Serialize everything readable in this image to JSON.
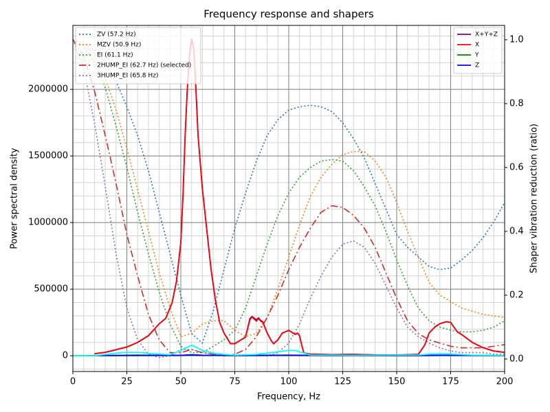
{
  "chart_data": {
    "type": "line",
    "title": "Frequency response and shapers",
    "xlabel": "Frequency, Hz",
    "ylabel": "Power spectral density",
    "y2label": "Shaper vibration reduction (ratio)",
    "xlim": [
      0,
      200
    ],
    "ylim": [
      -118000,
      2480000
    ],
    "y2lim": [
      -0.039,
      1.045
    ],
    "xticks": [
      0,
      25,
      50,
      75,
      100,
      125,
      150,
      175,
      200
    ],
    "yticks": [
      0,
      500000,
      1000000,
      1500000,
      2000000
    ],
    "y2ticks": [
      {
        "value": 0,
        "label": "0.0"
      },
      0.2,
      0.4,
      0.6,
      0.8,
      {
        "value": 1,
        "label": "1.0"
      }
    ],
    "xminorticks": [
      0,
      5,
      10,
      15,
      20,
      25,
      30,
      35,
      40,
      45,
      50,
      55,
      60,
      65,
      70,
      75,
      80,
      85,
      90,
      95,
      100,
      105,
      110,
      115,
      120,
      125,
      130,
      135,
      140,
      145,
      150,
      155,
      160,
      165,
      170,
      175,
      180,
      185,
      190,
      195,
      200
    ],
    "yminorticks": [
      -100000,
      0,
      100000,
      200000,
      300000,
      400000,
      500000,
      600000,
      700000,
      800000,
      900000,
      1000000,
      1100000,
      1200000,
      1300000,
      1400000,
      1500000,
      1600000,
      1700000,
      1800000,
      1900000,
      2000000,
      2100000,
      2200000,
      2300000,
      2400000
    ],
    "grid": true,
    "legend": "upper right",
    "legend2": "upper left",
    "x": [
      0,
      5,
      10,
      15,
      20,
      25,
      30,
      35,
      40,
      45,
      50,
      55,
      60,
      65,
      70,
      75,
      80,
      85,
      90,
      95,
      100,
      105,
      110,
      115,
      120,
      125,
      130,
      135,
      140,
      145,
      150,
      155,
      160,
      165,
      170,
      175,
      180,
      185,
      190,
      195,
      200
    ],
    "series": [
      {
        "name": "X+Y+Z",
        "color": "#800080",
        "style": "solid",
        "x": [
          10,
          15,
          20,
          25,
          30,
          35,
          40,
          43,
          46,
          48,
          50,
          51,
          52,
          53,
          54,
          55,
          56,
          57,
          58,
          60,
          62,
          64,
          66,
          68,
          70,
          73,
          75,
          78,
          80,
          82,
          83,
          85,
          86,
          87,
          88,
          90,
          92,
          93,
          95,
          97,
          100,
          102,
          103,
          104,
          105,
          106,
          107,
          110,
          120,
          130,
          140,
          150,
          155,
          160,
          163,
          165,
          168,
          170,
          173,
          175,
          178,
          180,
          185,
          190,
          195,
          200
        ],
        "values": [
          16000,
          26000,
          46000,
          66000,
          101000,
          151000,
          241000,
          281000,
          401000,
          561000,
          851000,
          1201000,
          1651000,
          2001000,
          2251000,
          2381000,
          2301000,
          2001000,
          1651000,
          1251000,
          951000,
          651000,
          421000,
          251000,
          171000,
          91000,
          91000,
          121000,
          141000,
          280000,
          295000,
          270000,
          285000,
          265000,
          255000,
          171000,
          111000,
          91000,
          121000,
          171000,
          191000,
          171000,
          161000,
          171000,
          151000,
          81000,
          21000,
          13000,
          9000,
          11000,
          7000,
          6000,
          8000,
          11000,
          81000,
          171000,
          221000,
          241000,
          256000,
          251000,
          181000,
          161000,
          101000,
          61000,
          36000,
          26000
        ]
      },
      {
        "name": "X",
        "color": "#ff0000",
        "style": "solid",
        "x": [
          10,
          15,
          20,
          25,
          30,
          35,
          40,
          43,
          46,
          48,
          50,
          51,
          52,
          53,
          54,
          55,
          56,
          57,
          58,
          60,
          62,
          64,
          66,
          68,
          70,
          73,
          75,
          78,
          80,
          82,
          83,
          85,
          86,
          87,
          88,
          90,
          92,
          93,
          95,
          97,
          100,
          102,
          103,
          104,
          105,
          106,
          107,
          110,
          120,
          130,
          140,
          150,
          155,
          160,
          163,
          165,
          168,
          170,
          173,
          175,
          178,
          180,
          185,
          190,
          195,
          200
        ],
        "values": [
          15000,
          25000,
          45000,
          65000,
          100000,
          150000,
          240000,
          280000,
          400000,
          560000,
          850000,
          1200000,
          1650000,
          2000000,
          2250000,
          2380000,
          2300000,
          2000000,
          1650000,
          1250000,
          950000,
          650000,
          420000,
          250000,
          170000,
          90000,
          90000,
          120000,
          140000,
          270000,
          290000,
          260000,
          280000,
          260000,
          250000,
          170000,
          110000,
          90000,
          120000,
          170000,
          190000,
          170000,
          160000,
          170000,
          150000,
          80000,
          20000,
          12000,
          8000,
          10000,
          6000,
          5000,
          7000,
          10000,
          80000,
          170000,
          220000,
          240000,
          255000,
          250000,
          180000,
          160000,
          100000,
          60000,
          35000,
          25000
        ]
      },
      {
        "name": "Y",
        "color": "#008000",
        "style": "solid",
        "x": [
          10,
          30,
          50,
          55,
          60,
          80,
          100,
          120,
          160,
          170,
          200
        ],
        "values": [
          2000,
          5000,
          3000,
          8000,
          4000,
          3000,
          5000,
          2000,
          2000,
          4000,
          1000
        ]
      },
      {
        "name": "Z",
        "color": "#0000ff",
        "style": "solid",
        "x": [
          0,
          10,
          30,
          50,
          55,
          60,
          80,
          100,
          120,
          160,
          170,
          200
        ],
        "values": [
          0,
          1000,
          2000,
          3000,
          6000,
          3000,
          2000,
          3000,
          1000,
          1000,
          3000,
          1000
        ]
      },
      {
        "color": "#00ffff",
        "style": "solid",
        "x": [
          0,
          10,
          20,
          25,
          30,
          40,
          45,
          50,
          55,
          60,
          65,
          70,
          75,
          85,
          95,
          100,
          103,
          107,
          110,
          130,
          160,
          165,
          170,
          175,
          185,
          200
        ],
        "values": [
          0,
          0,
          20000,
          25000,
          25000,
          12000,
          8000,
          40000,
          80000,
          40000,
          20000,
          10000,
          5000,
          10000,
          30000,
          40000,
          40000,
          20000,
          5000,
          3000,
          5000,
          12000,
          15000,
          12000,
          5000,
          2000
        ]
      },
      {
        "name": "ZV (57.2 Hz)",
        "color": "#1f77b4",
        "style": "dotted",
        "axis": "y2",
        "values": [
          1.0,
          0.99,
          0.97,
          0.93,
          0.87,
          0.79,
          0.7,
          0.59,
          0.46,
          0.33,
          0.2,
          0.08,
          0.05,
          0.15,
          0.28,
          0.41,
          0.52,
          0.62,
          0.7,
          0.75,
          0.78,
          0.79,
          0.795,
          0.79,
          0.775,
          0.74,
          0.69,
          0.63,
          0.55,
          0.47,
          0.39,
          0.35,
          0.32,
          0.29,
          0.28,
          0.285,
          0.31,
          0.34,
          0.38,
          0.43,
          0.49
        ]
      },
      {
        "name": "MZV (50.9 Hz)",
        "color": "#ff7f0e",
        "style": "dotted",
        "axis": "y2",
        "values": [
          1.0,
          0.99,
          0.95,
          0.88,
          0.78,
          0.66,
          0.53,
          0.4,
          0.27,
          0.16,
          0.07,
          0.08,
          0.11,
          0.12,
          0.12,
          0.09,
          0.07,
          0.08,
          0.13,
          0.22,
          0.32,
          0.42,
          0.51,
          0.57,
          0.61,
          0.64,
          0.65,
          0.65,
          0.62,
          0.57,
          0.49,
          0.4,
          0.32,
          0.24,
          0.2,
          0.18,
          0.16,
          0.15,
          0.14,
          0.135,
          0.13
        ]
      },
      {
        "name": "EI (61.1 Hz)",
        "color": "#2ca02c",
        "style": "dotted",
        "axis": "y2",
        "values": [
          1.0,
          0.98,
          0.93,
          0.85,
          0.73,
          0.6,
          0.46,
          0.33,
          0.21,
          0.11,
          0.04,
          0.02,
          0.02,
          0.04,
          0.06,
          0.09,
          0.16,
          0.26,
          0.36,
          0.45,
          0.52,
          0.57,
          0.6,
          0.62,
          0.625,
          0.62,
          0.59,
          0.54,
          0.48,
          0.4,
          0.31,
          0.23,
          0.16,
          0.12,
          0.1,
          0.09,
          0.085,
          0.085,
          0.09,
          0.1,
          0.12
        ]
      },
      {
        "name": "2HUMP_EI (62.7 Hz) (selected)",
        "color": "#d62728",
        "style": "dashdot",
        "axis": "y2",
        "values": [
          1.0,
          0.95,
          0.84,
          0.7,
          0.55,
          0.39,
          0.26,
          0.14,
          0.06,
          0.02,
          0.02,
          0.03,
          0.02,
          0.015,
          0.01,
          0.015,
          0.03,
          0.07,
          0.13,
          0.2,
          0.28,
          0.35,
          0.41,
          0.46,
          0.48,
          0.475,
          0.45,
          0.41,
          0.35,
          0.27,
          0.19,
          0.12,
          0.08,
          0.06,
          0.05,
          0.04,
          0.035,
          0.035,
          0.035,
          0.04,
          0.045
        ]
      },
      {
        "name": "3HUMP_EI (65.8 Hz)",
        "color": "#9467bd",
        "style": "dotted",
        "axis": "y2",
        "values": [
          1.0,
          0.91,
          0.74,
          0.54,
          0.33,
          0.16,
          0.06,
          0.015,
          0.005,
          0.01,
          0.03,
          0.03,
          0.02,
          0.015,
          0.01,
          0.01,
          0.01,
          0.01,
          0.01,
          0.02,
          0.05,
          0.11,
          0.19,
          0.26,
          0.32,
          0.36,
          0.37,
          0.35,
          0.3,
          0.23,
          0.16,
          0.1,
          0.07,
          0.05,
          0.035,
          0.025,
          0.02,
          0.02,
          0.02,
          0.015,
          0.015
        ]
      }
    ]
  }
}
